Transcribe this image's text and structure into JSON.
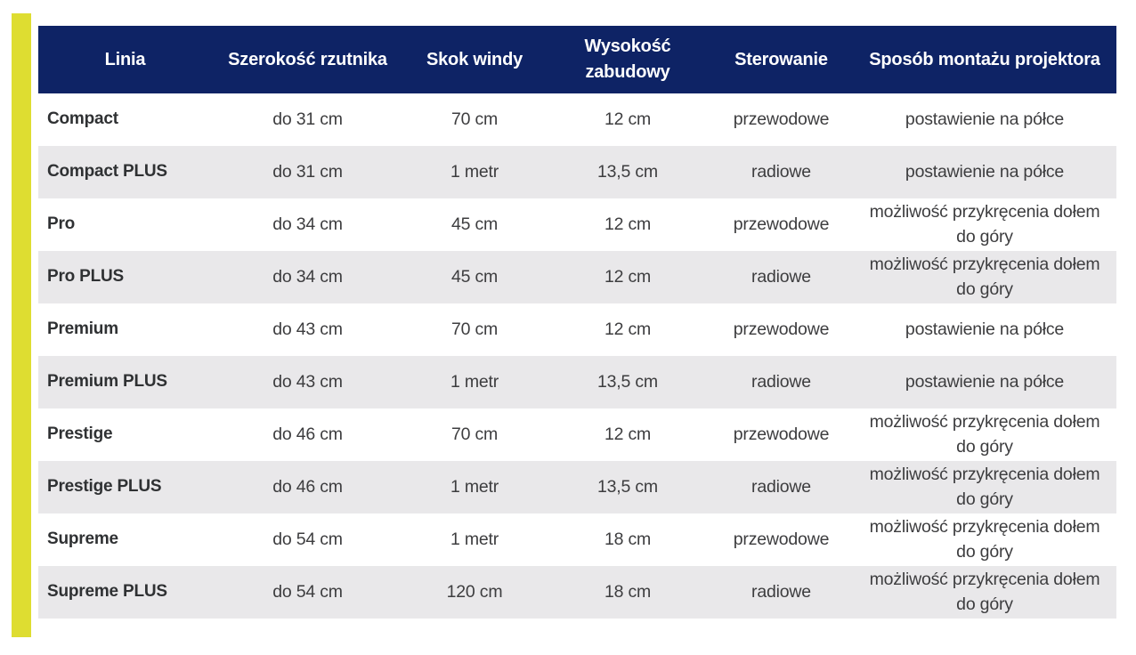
{
  "page": {
    "background_color": "#ffffff",
    "accent_bar_color": "#dedd31"
  },
  "chart_data": {
    "type": "table",
    "title": "",
    "header_bg": "#0e2365",
    "header_text_color": "#ffffff",
    "row_alt_bg": "#e9e8ea",
    "columns": [
      "Linia",
      "Szerokość rzutnika",
      "Skok windy",
      "Wysokość zabudowy",
      "Sterowanie",
      "Sposób montażu projektora"
    ],
    "rows": [
      [
        "Compact",
        "do 31 cm",
        "70 cm",
        "12 cm",
        "przewodowe",
        "postawienie na półce"
      ],
      [
        "Compact PLUS",
        "do 31 cm",
        "1 metr",
        "13,5 cm",
        "radiowe",
        "postawienie na półce"
      ],
      [
        "Pro",
        "do 34 cm",
        "45 cm",
        "12 cm",
        "przewodowe",
        "możliwość przykręcenia dołem do góry"
      ],
      [
        "Pro PLUS",
        "do 34 cm",
        "45 cm",
        "12 cm",
        "radiowe",
        "możliwość przykręcenia dołem do góry"
      ],
      [
        "Premium",
        "do 43 cm",
        "70 cm",
        "12 cm",
        "przewodowe",
        "postawienie na półce"
      ],
      [
        "Premium PLUS",
        "do 43 cm",
        "1 metr",
        "13,5 cm",
        "radiowe",
        "postawienie na półce"
      ],
      [
        "Prestige",
        "do 46 cm",
        "70 cm",
        "12 cm",
        "przewodowe",
        "możliwość przykręcenia dołem do góry"
      ],
      [
        "Prestige PLUS",
        "do 46 cm",
        "1 metr",
        "13,5 cm",
        "radiowe",
        "możliwość przykręcenia dołem do góry"
      ],
      [
        "Supreme",
        "do 54 cm",
        "1 metr",
        "18 cm",
        "przewodowe",
        "możliwość przykręcenia dołem do góry"
      ],
      [
        "Supreme PLUS",
        "do 54 cm",
        "120 cm",
        "18 cm",
        "radiowe",
        "możliwość przykręcenia dołem do góry"
      ]
    ]
  }
}
